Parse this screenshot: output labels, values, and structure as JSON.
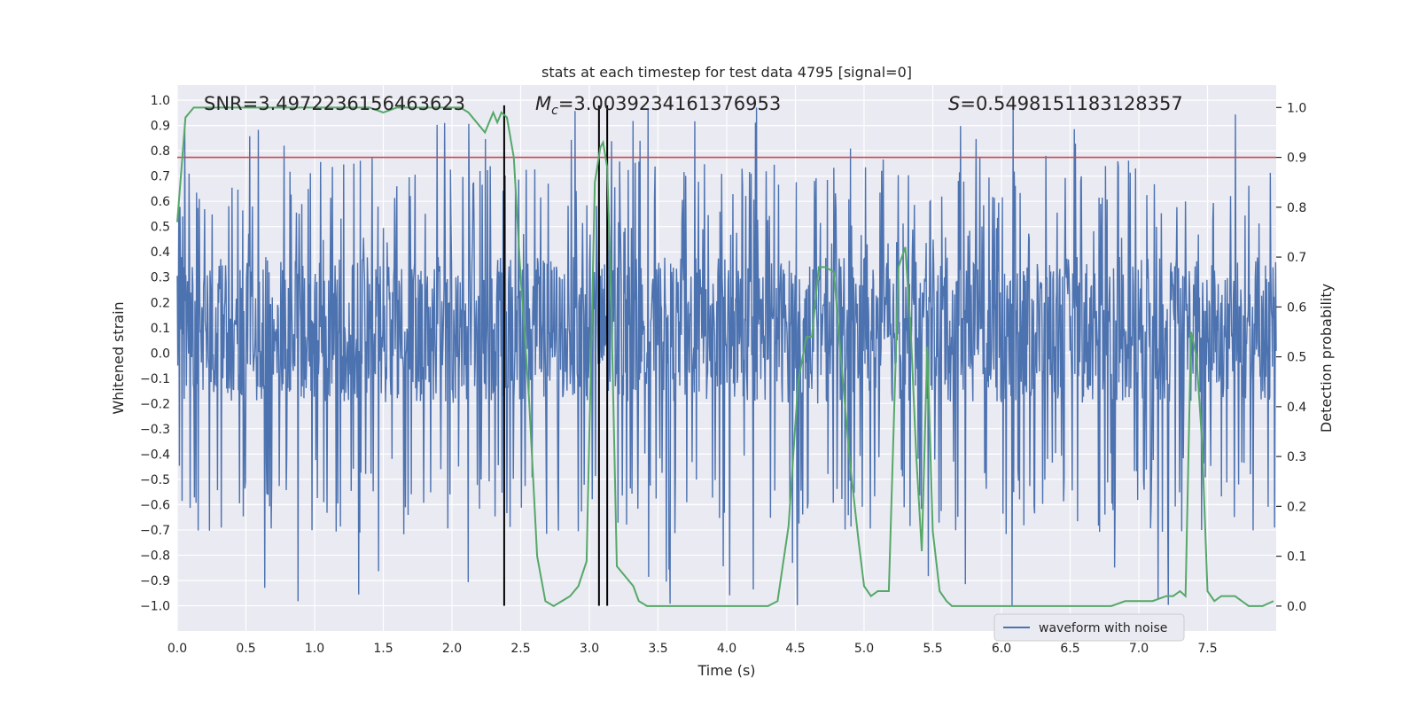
{
  "chart_data": {
    "type": "line",
    "title": "stats at each timestep for test data 4795 [signal=0]",
    "xlabel": "Time (s)",
    "ylabel_left": "Whitened strain",
    "ylabel_right": "Detection probability",
    "xlim": [
      0.0,
      8.0
    ],
    "ylim_left": [
      -1.1,
      1.06
    ],
    "ylim_right": [
      -0.05,
      1.045
    ],
    "x_ticks": [
      "0.0",
      "0.5",
      "1.0",
      "1.5",
      "2.0",
      "2.5",
      "3.0",
      "3.5",
      "4.0",
      "4.5",
      "5.0",
      "5.5",
      "6.0",
      "6.5",
      "7.0",
      "7.5"
    ],
    "x_tick_values": [
      0.0,
      0.5,
      1.0,
      1.5,
      2.0,
      2.5,
      3.0,
      3.5,
      4.0,
      4.5,
      5.0,
      5.5,
      6.0,
      6.5,
      7.0,
      7.5
    ],
    "y_ticks_left": [
      "1.0",
      "0.9",
      "0.8",
      "0.7",
      "0.6",
      "0.5",
      "0.4",
      "0.3",
      "0.2",
      "0.1",
      "0.0",
      "−0.1",
      "−0.2",
      "−0.3",
      "−0.4",
      "−0.5",
      "−0.6",
      "−0.7",
      "−0.8",
      "−0.9",
      "−1.0"
    ],
    "y_tick_values_left": [
      1.0,
      0.9,
      0.8,
      0.7,
      0.6,
      0.5,
      0.4,
      0.3,
      0.2,
      0.1,
      0.0,
      -0.1,
      -0.2,
      -0.3,
      -0.4,
      -0.5,
      -0.6,
      -0.7,
      -0.8,
      -0.9,
      -1.0
    ],
    "y_ticks_right": [
      "1.0",
      "0.9",
      "0.8",
      "0.7",
      "0.6",
      "0.5",
      "0.4",
      "0.3",
      "0.2",
      "0.1",
      "0.0"
    ],
    "y_tick_values_right": [
      1.0,
      0.9,
      0.8,
      0.7,
      0.6,
      0.5,
      0.4,
      0.3,
      0.2,
      0.1,
      0.0
    ],
    "grid": true,
    "legend": {
      "placement": "lower-right",
      "entries": [
        "waveform with noise"
      ]
    },
    "annotations": {
      "snr_label": "SNR=3.4972236156463623",
      "mc_symbol": "M",
      "mc_subscript": "c",
      "mc_value": "=3.0039234161376953",
      "s_symbol": "S",
      "s_value": "=0.5498151183128357"
    },
    "threshold_right_axis": 0.9,
    "vertical_markers_x": [
      2.38,
      3.07,
      3.13
    ],
    "vertical_markers_range_left": [
      -1.0,
      0.98
    ],
    "waveform": {
      "name": "waveform with noise",
      "x_range": [
        0.0,
        8.0
      ],
      "sample_count": 2048,
      "core_band": [
        -0.2,
        0.38
      ],
      "typical_peak_range": [
        -0.72,
        0.78
      ],
      "extreme_range": [
        -1.0,
        0.98
      ]
    },
    "detection_probability": {
      "x": [
        0.0,
        0.06,
        0.12,
        0.2,
        0.3,
        0.4,
        0.5,
        0.6,
        0.7,
        0.8,
        0.9,
        1.0,
        1.1,
        1.2,
        1.3,
        1.4,
        1.5,
        1.6,
        1.7,
        1.8,
        1.9,
        2.0,
        2.06,
        2.12,
        2.18,
        2.24,
        2.3,
        2.33,
        2.36,
        2.4,
        2.45,
        2.5,
        2.56,
        2.62,
        2.68,
        2.74,
        2.8,
        2.86,
        2.92,
        2.98,
        3.04,
        3.08,
        3.1,
        3.13,
        3.16,
        3.2,
        3.26,
        3.32,
        3.36,
        3.42,
        3.5,
        3.6,
        3.7,
        3.8,
        3.9,
        4.0,
        4.1,
        4.2,
        4.3,
        4.37,
        4.45,
        4.52,
        4.58,
        4.62,
        4.67,
        4.72,
        4.78,
        4.84,
        4.9,
        4.96,
        5.0,
        5.05,
        5.1,
        5.18,
        5.25,
        5.3,
        5.34,
        5.38,
        5.42,
        5.46,
        5.5,
        5.55,
        5.6,
        5.64,
        5.68,
        5.74,
        5.8,
        5.9,
        6.0,
        6.1,
        6.2,
        6.3,
        6.4,
        6.5,
        6.6,
        6.7,
        6.8,
        6.9,
        7.0,
        7.1,
        7.2,
        7.25,
        7.3,
        7.34,
        7.38,
        7.42,
        7.46,
        7.5,
        7.55,
        7.6,
        7.65,
        7.7,
        7.75,
        7.8,
        7.9,
        7.98
      ],
      "y": [
        0.77,
        0.98,
        1.0,
        1.0,
        1.0,
        1.0,
        1.0,
        1.0,
        1.0,
        1.0,
        1.0,
        1.0,
        1.0,
        1.0,
        1.0,
        1.0,
        0.99,
        1.0,
        1.0,
        1.0,
        1.0,
        1.0,
        1.0,
        0.99,
        0.97,
        0.95,
        0.99,
        0.97,
        0.99,
        0.98,
        0.9,
        0.66,
        0.42,
        0.1,
        0.01,
        0.0,
        0.01,
        0.02,
        0.04,
        0.09,
        0.85,
        0.92,
        0.93,
        0.88,
        0.6,
        0.08,
        0.06,
        0.04,
        0.01,
        0.0,
        0.0,
        0.0,
        0.0,
        0.0,
        0.0,
        0.0,
        0.0,
        0.0,
        0.0,
        0.01,
        0.16,
        0.45,
        0.54,
        0.54,
        0.68,
        0.68,
        0.67,
        0.47,
        0.28,
        0.13,
        0.04,
        0.02,
        0.03,
        0.03,
        0.68,
        0.72,
        0.55,
        0.3,
        0.11,
        0.52,
        0.15,
        0.03,
        0.01,
        0.0,
        0.0,
        0.0,
        0.0,
        0.0,
        0.0,
        0.0,
        0.0,
        0.0,
        0.0,
        0.0,
        0.0,
        0.0,
        0.0,
        0.01,
        0.01,
        0.01,
        0.02,
        0.02,
        0.03,
        0.02,
        0.55,
        0.5,
        0.33,
        0.03,
        0.01,
        0.02,
        0.02,
        0.02,
        0.01,
        0.0,
        0.0,
        0.01
      ]
    },
    "colors": {
      "plot_background": "#eaeaf2",
      "grid": "#ffffff",
      "waveform": "#4c72b0",
      "probability": "#55a868",
      "threshold": "#c44e52",
      "markers": "#000000",
      "text": "#262626"
    }
  }
}
